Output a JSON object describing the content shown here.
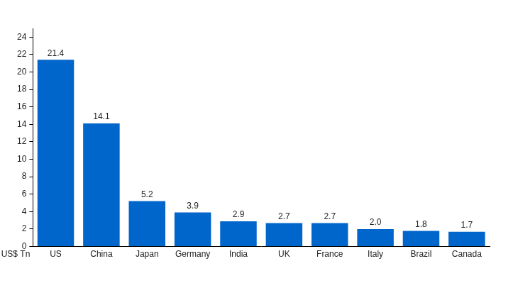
{
  "chart_data": {
    "type": "bar",
    "ylabel": "US$ Tn",
    "categories": [
      "US",
      "China",
      "Japan",
      "Germany",
      "India",
      "UK",
      "France",
      "Italy",
      "Brazil",
      "Canada"
    ],
    "values": [
      21.4,
      14.1,
      5.2,
      3.9,
      2.9,
      2.7,
      2.7,
      2.0,
      1.8,
      1.7
    ],
    "value_labels": [
      "21.4",
      "14.1",
      "5.2",
      "3.9",
      "2.9",
      "2.7",
      "2.7",
      "2.0",
      "1.8",
      "1.7"
    ],
    "color": "#0066cc",
    "ylim": [
      0,
      25
    ],
    "yticks": [
      0,
      2,
      4,
      6,
      8,
      10,
      12,
      14,
      16,
      18,
      20,
      22,
      24
    ],
    "grid": false,
    "data_labels": true
  }
}
